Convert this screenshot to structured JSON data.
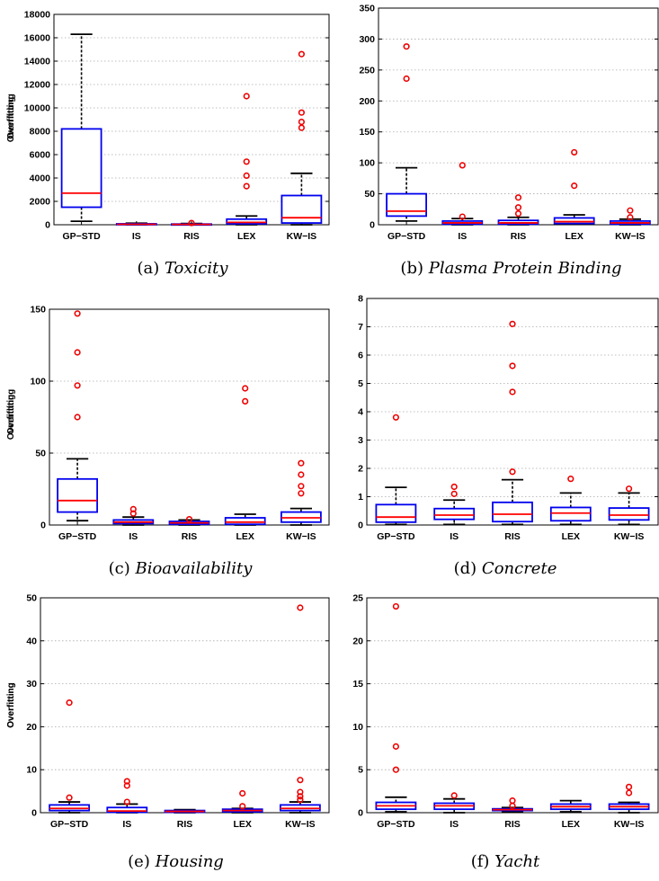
{
  "chart_data": [
    {
      "type": "box",
      "caption_prefix": "(a)",
      "caption_name": "Toxicity",
      "ylabel": "Overfitting",
      "ylim": [
        0,
        18000
      ],
      "yticks": [
        0,
        2000,
        4000,
        6000,
        8000,
        10000,
        12000,
        14000,
        16000,
        18000
      ],
      "categories": [
        "GP−STD",
        "IS",
        "RIS",
        "LEX",
        "KW−IS"
      ],
      "boxes": [
        {
          "min": 300,
          "q1": 1500,
          "median": 2700,
          "q3": 8200,
          "max": 16300,
          "outliers": []
        },
        {
          "min": 0,
          "q1": 15,
          "median": 40,
          "q3": 80,
          "max": 130,
          "outliers": []
        },
        {
          "min": 0,
          "q1": 10,
          "median": 30,
          "q3": 60,
          "max": 100,
          "outliers": [
            150
          ]
        },
        {
          "min": 0,
          "q1": 80,
          "median": 200,
          "q3": 480,
          "max": 750,
          "outliers": [
            3300,
            4200,
            5400,
            11000
          ]
        },
        {
          "min": 0,
          "q1": 150,
          "median": 600,
          "q3": 2500,
          "max": 4400,
          "outliers": [
            8300,
            8800,
            9600,
            14600
          ]
        }
      ]
    },
    {
      "type": "box",
      "caption_prefix": "(b)",
      "caption_name": "Plasma Protein Binding",
      "ylabel": "Overfitting",
      "ylim": [
        0,
        350
      ],
      "yticks": [
        0,
        50,
        100,
        150,
        200,
        250,
        300,
        350
      ],
      "categories": [
        "GP−STD",
        "IS",
        "RIS",
        "LEX",
        "KW−IS"
      ],
      "boxes": [
        {
          "min": 6,
          "q1": 14,
          "median": 22,
          "q3": 50,
          "max": 92,
          "outliers": [
            236,
            288
          ]
        },
        {
          "min": 0,
          "q1": 1,
          "median": 3,
          "q3": 6,
          "max": 10,
          "outliers": [
            13,
            96
          ]
        },
        {
          "min": 0,
          "q1": 1,
          "median": 3,
          "q3": 7,
          "max": 12,
          "outliers": [
            18,
            28,
            44
          ]
        },
        {
          "min": 1,
          "q1": 2,
          "median": 5,
          "q3": 11,
          "max": 16,
          "outliers": [
            63,
            117
          ]
        },
        {
          "min": 0,
          "q1": 1,
          "median": 3,
          "q3": 6,
          "max": 9,
          "outliers": [
            12,
            23
          ]
        }
      ]
    },
    {
      "type": "box",
      "caption_prefix": "(c)",
      "caption_name": "Bioavailability",
      "ylabel": "Overfitting",
      "ylim": [
        0,
        150
      ],
      "yticks": [
        0,
        50,
        100,
        150
      ],
      "categories": [
        "GP−STD",
        "IS",
        "RIS",
        "LEX",
        "KW−IS"
      ],
      "boxes": [
        {
          "min": 3,
          "q1": 9,
          "median": 17,
          "q3": 32,
          "max": 46,
          "outliers": [
            75,
            97,
            120,
            147
          ]
        },
        {
          "min": 0,
          "q1": 1,
          "median": 2,
          "q3": 3.5,
          "max": 5.5,
          "outliers": [
            8,
            11
          ]
        },
        {
          "min": 0,
          "q1": 0.5,
          "median": 1.5,
          "q3": 2.5,
          "max": 3.5,
          "outliers": [
            4
          ]
        },
        {
          "min": 0,
          "q1": 0.5,
          "median": 2,
          "q3": 5,
          "max": 7.5,
          "outliers": [
            86,
            95
          ]
        },
        {
          "min": 0,
          "q1": 2,
          "median": 5,
          "q3": 9,
          "max": 11.5,
          "outliers": [
            22,
            27,
            35,
            43
          ]
        }
      ]
    },
    {
      "type": "box",
      "caption_prefix": "(d)",
      "caption_name": "Concrete",
      "ylabel": "Overfitting",
      "ylim": [
        0,
        8
      ],
      "yticks": [
        0,
        1,
        2,
        3,
        4,
        5,
        6,
        7,
        8
      ],
      "categories": [
        "GP−STD",
        "IS",
        "RIS",
        "LEX",
        "KW−IS"
      ],
      "boxes": [
        {
          "min": 0.02,
          "q1": 0.1,
          "median": 0.28,
          "q3": 0.72,
          "max": 1.33,
          "outliers": [
            3.8
          ]
        },
        {
          "min": 0.02,
          "q1": 0.2,
          "median": 0.35,
          "q3": 0.58,
          "max": 0.88,
          "outliers": [
            1.1,
            1.35
          ]
        },
        {
          "min": 0.02,
          "q1": 0.12,
          "median": 0.38,
          "q3": 0.8,
          "max": 1.6,
          "outliers": [
            1.88,
            4.7,
            5.62,
            7.1
          ]
        },
        {
          "min": 0.02,
          "q1": 0.15,
          "median": 0.42,
          "q3": 0.62,
          "max": 1.13,
          "outliers": [
            1.63
          ]
        },
        {
          "min": 0.02,
          "q1": 0.18,
          "median": 0.35,
          "q3": 0.6,
          "max": 1.13,
          "outliers": [
            1.28
          ]
        }
      ]
    },
    {
      "type": "box",
      "caption_prefix": "(e)",
      "caption_name": "Housing",
      "ylabel": "Overfitting",
      "ylim": [
        0,
        50
      ],
      "yticks": [
        0,
        10,
        20,
        30,
        40,
        50
      ],
      "categories": [
        "GP−STD",
        "IS",
        "RIS",
        "LEX",
        "KW−IS"
      ],
      "boxes": [
        {
          "min": 0,
          "q1": 0.5,
          "median": 1,
          "q3": 1.8,
          "max": 2.5,
          "outliers": [
            3.5,
            25.6
          ]
        },
        {
          "min": 0,
          "q1": 0.1,
          "median": 0.4,
          "q3": 1.2,
          "max": 2,
          "outliers": [
            2.5,
            6.3,
            7.3
          ]
        },
        {
          "min": 0,
          "q1": 0.1,
          "median": 0.3,
          "q3": 0.5,
          "max": 0.7,
          "outliers": []
        },
        {
          "min": 0,
          "q1": 0.2,
          "median": 0.5,
          "q3": 0.8,
          "max": 1,
          "outliers": [
            1.5,
            4.5
          ]
        },
        {
          "min": 0,
          "q1": 0.5,
          "median": 1,
          "q3": 1.8,
          "max": 2.5,
          "outliers": [
            3,
            3.8,
            4.8,
            7.6,
            47.7
          ]
        }
      ]
    },
    {
      "type": "box",
      "caption_prefix": "(f)",
      "caption_name": "Yacht",
      "ylabel": "Overfitting",
      "ylim": [
        0,
        25
      ],
      "yticks": [
        0,
        5,
        10,
        15,
        20,
        25
      ],
      "categories": [
        "GP−STD",
        "IS",
        "RIS",
        "LEX",
        "KW−IS"
      ],
      "boxes": [
        {
          "min": 0.1,
          "q1": 0.4,
          "median": 0.8,
          "q3": 1.2,
          "max": 1.8,
          "outliers": [
            5,
            7.7,
            24
          ]
        },
        {
          "min": 0,
          "q1": 0.4,
          "median": 0.8,
          "q3": 1.1,
          "max": 1.6,
          "outliers": [
            2
          ]
        },
        {
          "min": 0.1,
          "q1": 0.25,
          "median": 0.35,
          "q3": 0.45,
          "max": 0.6,
          "outliers": [
            0.8,
            1.4
          ]
        },
        {
          "min": 0.1,
          "q1": 0.4,
          "median": 0.7,
          "q3": 1,
          "max": 1.4,
          "outliers": []
        },
        {
          "min": 0,
          "q1": 0.4,
          "median": 0.7,
          "q3": 1,
          "max": 1.2,
          "outliers": [
            2.3,
            3
          ]
        }
      ]
    }
  ],
  "colors": {
    "box": "#0000ee",
    "median": "#ff0000",
    "whisker": "#000000",
    "outlier": "#ee0000",
    "grid": "#aaaaaa"
  }
}
